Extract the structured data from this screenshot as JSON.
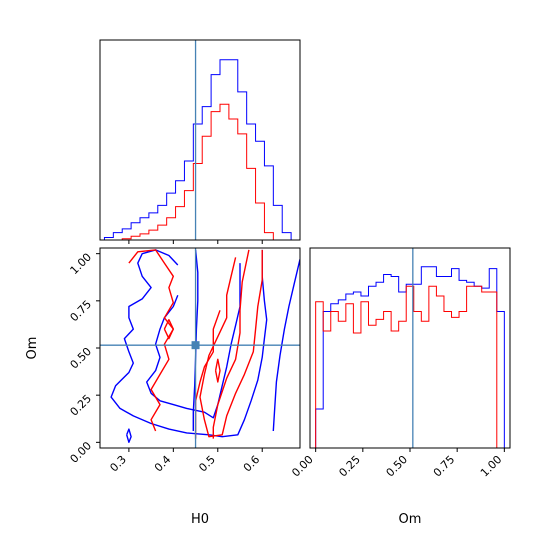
{
  "chart_data": {
    "type": "corner",
    "parameters": [
      "H0",
      "Om"
    ],
    "truths": {
      "H0": 0.45,
      "Om": 0.515
    },
    "truth_color": "#4682b4",
    "series": [
      {
        "color": "#0000ff"
      },
      {
        "color": "#ff0000"
      }
    ],
    "hist_H0": {
      "xlim": [
        0.235,
        0.685
      ],
      "edges": [
        0.245,
        0.265,
        0.285,
        0.305,
        0.325,
        0.345,
        0.365,
        0.385,
        0.405,
        0.425,
        0.445,
        0.465,
        0.485,
        0.505,
        0.525,
        0.545,
        0.565,
        0.585,
        0.605,
        0.625,
        0.645,
        0.665,
        0.685
      ],
      "series_values": [
        [
          2,
          6,
          9,
          14,
          18,
          22,
          28,
          38,
          48,
          64,
          94,
          108,
          134,
          146,
          146,
          120,
          94,
          80,
          60,
          28,
          6,
          0
        ],
        [
          0,
          0,
          1,
          3,
          5,
          8,
          12,
          18,
          27,
          40,
          62,
          84,
          104,
          110,
          98,
          86,
          58,
          30,
          6,
          0,
          0,
          0
        ]
      ],
      "ymax": 150,
      "xticks": [
        0.3,
        0.4,
        0.5,
        0.6
      ]
    },
    "hist_Om": {
      "xlim": [
        -0.03,
        1.03
      ],
      "edges": [
        0.0,
        0.04,
        0.08,
        0.12,
        0.16,
        0.2,
        0.24,
        0.28,
        0.32,
        0.36,
        0.4,
        0.44,
        0.48,
        0.52,
        0.56,
        0.6,
        0.64,
        0.68,
        0.72,
        0.76,
        0.8,
        0.84,
        0.88,
        0.92,
        0.96,
        1.0
      ],
      "series_values": [
        [
          40,
          140,
          148,
          152,
          158,
          160,
          156,
          166,
          170,
          178,
          176,
          160,
          168,
          168,
          186,
          186,
          176,
          176,
          184,
          172,
          170,
          166,
          164,
          184,
          140
        ],
        [
          150,
          120,
          140,
          130,
          148,
          118,
          150,
          126,
          132,
          140,
          120,
          130,
          166,
          140,
          130,
          166,
          156,
          140,
          134,
          140,
          166,
          166,
          160,
          160,
          0
        ]
      ],
      "ymax": 190,
      "xticks": [
        0.0,
        0.25,
        0.5,
        0.75,
        1.0
      ],
      "xtick_labels": [
        "0.00",
        "0.25",
        "0.50",
        "0.75",
        "1.00"
      ]
    },
    "scatter_2d": {
      "xlim": [
        0.235,
        0.685
      ],
      "ylim": [
        -0.03,
        1.03
      ],
      "xticks": [
        0.3,
        0.4,
        0.5,
        0.6
      ],
      "yticks": [
        0.0,
        0.25,
        0.5,
        0.75,
        1.0
      ],
      "ytick_labels": [
        "0.00",
        "0.25",
        "0.50",
        "0.75",
        "1.00"
      ],
      "contours": [
        {
          "series": 0,
          "points": [
            [
              0.41,
              0.94
            ],
            [
              0.39,
              0.99
            ],
            [
              0.36,
              1.02
            ],
            [
              0.33,
              1.0
            ],
            [
              0.32,
              0.95
            ],
            [
              0.33,
              0.88
            ],
            [
              0.35,
              0.82
            ],
            [
              0.33,
              0.76
            ],
            [
              0.3,
              0.72
            ],
            [
              0.3,
              0.66
            ],
            [
              0.31,
              0.6
            ],
            [
              0.29,
              0.55
            ],
            [
              0.3,
              0.48
            ],
            [
              0.31,
              0.42
            ],
            [
              0.3,
              0.37
            ],
            [
              0.27,
              0.3
            ],
            [
              0.26,
              0.24
            ],
            [
              0.28,
              0.18
            ],
            [
              0.31,
              0.14
            ],
            [
              0.35,
              0.1
            ],
            [
              0.39,
              0.07
            ],
            [
              0.43,
              0.05
            ],
            [
              0.48,
              0.04
            ],
            [
              0.51,
              0.03
            ],
            [
              0.545,
              0.04
            ],
            [
              0.56,
              0.12
            ],
            [
              0.575,
              0.22
            ],
            [
              0.59,
              0.33
            ],
            [
              0.6,
              0.45
            ],
            [
              0.605,
              0.55
            ],
            [
              0.61,
              0.65
            ],
            [
              0.605,
              0.75
            ],
            [
              0.6,
              0.88
            ],
            [
              0.6,
              1.02
            ]
          ]
        },
        {
          "series": 0,
          "points": [
            [
              0.41,
              0.78
            ],
            [
              0.4,
              0.72
            ],
            [
              0.38,
              0.66
            ],
            [
              0.37,
              0.6
            ],
            [
              0.36,
              0.52
            ],
            [
              0.37,
              0.45
            ],
            [
              0.36,
              0.38
            ],
            [
              0.34,
              0.32
            ],
            [
              0.35,
              0.26
            ],
            [
              0.37,
              0.22
            ],
            [
              0.4,
              0.2
            ],
            [
              0.43,
              0.18
            ],
            [
              0.47,
              0.16
            ],
            [
              0.49,
              0.13
            ],
            [
              0.5,
              0.2
            ],
            [
              0.51,
              0.3
            ],
            [
              0.52,
              0.4
            ],
            [
              0.53,
              0.52
            ],
            [
              0.54,
              0.62
            ],
            [
              0.55,
              0.72
            ],
            [
              0.55,
              0.84
            ],
            [
              0.55,
              0.95
            ]
          ]
        },
        {
          "series": 0,
          "points": [
            [
              0.445,
              0.06
            ],
            [
              0.445,
              0.16
            ],
            [
              0.448,
              0.3
            ],
            [
              0.45,
              0.45
            ],
            [
              0.452,
              0.6
            ],
            [
              0.455,
              0.75
            ],
            [
              0.455,
              0.9
            ],
            [
              0.45,
              1.02
            ]
          ]
        },
        {
          "series": 0,
          "points": [
            [
              0.295,
              0.04
            ],
            [
              0.3,
              0.07
            ],
            [
              0.305,
              0.03
            ],
            [
              0.3,
              0.0
            ],
            [
              0.295,
              0.04
            ]
          ]
        },
        {
          "series": 0,
          "points": [
            [
              0.625,
              0.06
            ],
            [
              0.628,
              0.18
            ],
            [
              0.632,
              0.32
            ],
            [
              0.64,
              0.46
            ],
            [
              0.65,
              0.6
            ],
            [
              0.66,
              0.72
            ],
            [
              0.672,
              0.84
            ],
            [
              0.685,
              0.97
            ]
          ]
        },
        {
          "series": 1,
          "points": [
            [
              0.3,
              0.95
            ],
            [
              0.32,
              1.01
            ],
            [
              0.36,
              1.02
            ],
            [
              0.38,
              0.95
            ],
            [
              0.4,
              0.88
            ],
            [
              0.39,
              0.82
            ],
            [
              0.4,
              0.74
            ],
            [
              0.38,
              0.66
            ],
            [
              0.4,
              0.6
            ],
            [
              0.38,
              0.52
            ],
            [
              0.39,
              0.44
            ],
            [
              0.37,
              0.36
            ],
            [
              0.35,
              0.28
            ],
            [
              0.37,
              0.2
            ],
            [
              0.35,
              0.12
            ],
            [
              0.36,
              0.06
            ]
          ]
        },
        {
          "series": 1,
          "points": [
            [
              0.505,
              0.7
            ],
            [
              0.49,
              0.6
            ],
            [
              0.49,
              0.48
            ],
            [
              0.47,
              0.4
            ],
            [
              0.46,
              0.32
            ],
            [
              0.45,
              0.22
            ],
            [
              0.45,
              0.1
            ],
            [
              0.45,
              0.02
            ]
          ]
        },
        {
          "series": 1,
          "points": [
            [
              0.57,
              1.02
            ],
            [
              0.555,
              0.85
            ],
            [
              0.55,
              0.7
            ],
            [
              0.55,
              0.58
            ],
            [
              0.54,
              0.44
            ],
            [
              0.52,
              0.34
            ],
            [
              0.5,
              0.2
            ],
            [
              0.49,
              0.08
            ],
            [
              0.49,
              0.02
            ]
          ]
        },
        {
          "series": 1,
          "points": [
            [
              0.495,
              0.38
            ],
            [
              0.5,
              0.44
            ],
            [
              0.505,
              0.38
            ],
            [
              0.5,
              0.32
            ],
            [
              0.495,
              0.38
            ]
          ]
        },
        {
          "series": 1,
          "points": [
            [
              0.38,
              0.6
            ],
            [
              0.39,
              0.65
            ],
            [
              0.4,
              0.6
            ],
            [
              0.39,
              0.55
            ],
            [
              0.38,
              0.6
            ]
          ]
        },
        {
          "series": 1,
          "points": [
            [
              0.54,
              0.98
            ],
            [
              0.53,
              0.88
            ],
            [
              0.52,
              0.78
            ],
            [
              0.52,
              0.66
            ],
            [
              0.5,
              0.56
            ],
            [
              0.48,
              0.46
            ],
            [
              0.47,
              0.36
            ],
            [
              0.46,
              0.24
            ],
            [
              0.47,
              0.12
            ],
            [
              0.48,
              0.03
            ],
            [
              0.51,
              0.04
            ],
            [
              0.52,
              0.14
            ],
            [
              0.54,
              0.26
            ],
            [
              0.56,
              0.36
            ],
            [
              0.58,
              0.48
            ],
            [
              0.585,
              0.6
            ],
            [
              0.59,
              0.72
            ],
            [
              0.6,
              0.86
            ],
            [
              0.6,
              1.02
            ]
          ]
        }
      ]
    }
  }
}
